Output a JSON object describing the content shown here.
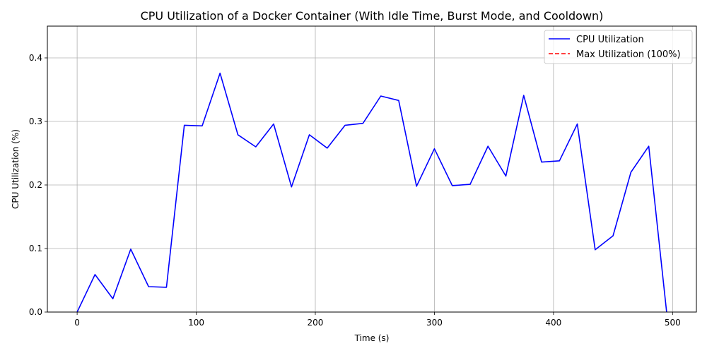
{
  "chart_data": {
    "type": "line",
    "title": "CPU Utilization of a Docker Container (With Idle Time, Burst Mode, and Cooldown)",
    "xlabel": "Time (s)",
    "ylabel": "CPU Utilization (%)",
    "xlim": [
      -25,
      520
    ],
    "ylim": [
      0,
      0.45
    ],
    "xticks": [
      0,
      100,
      200,
      300,
      400,
      500
    ],
    "yticks": [
      0.0,
      0.1,
      0.2,
      0.3,
      0.4
    ],
    "xtick_labels": [
      "0",
      "100",
      "200",
      "300",
      "400",
      "500"
    ],
    "ytick_labels": [
      "0.0",
      "0.1",
      "0.2",
      "0.3",
      "0.4"
    ],
    "grid": true,
    "legend_position": "top-right",
    "series": [
      {
        "name": "CPU Utilization",
        "color": "#0000ff",
        "style": "solid",
        "x": [
          0,
          15,
          30,
          45,
          60,
          75,
          90,
          105,
          120,
          135,
          150,
          165,
          180,
          195,
          210,
          225,
          240,
          255,
          270,
          285,
          300,
          315,
          330,
          345,
          360,
          375,
          390,
          405,
          420,
          435,
          450,
          465,
          480,
          495
        ],
        "y": [
          0.0,
          0.059,
          0.021,
          0.099,
          0.04,
          0.039,
          0.294,
          0.293,
          0.376,
          0.279,
          0.26,
          0.296,
          0.197,
          0.279,
          0.258,
          0.294,
          0.297,
          0.34,
          0.333,
          0.198,
          0.257,
          0.199,
          0.201,
          0.261,
          0.214,
          0.341,
          0.236,
          0.238,
          0.296,
          0.098,
          0.12,
          0.22,
          0.261,
          0.0
        ]
      },
      {
        "name": "Max Utilization (100%)",
        "color": "#ff0000",
        "style": "dashed",
        "y_constant": 100
      }
    ]
  }
}
